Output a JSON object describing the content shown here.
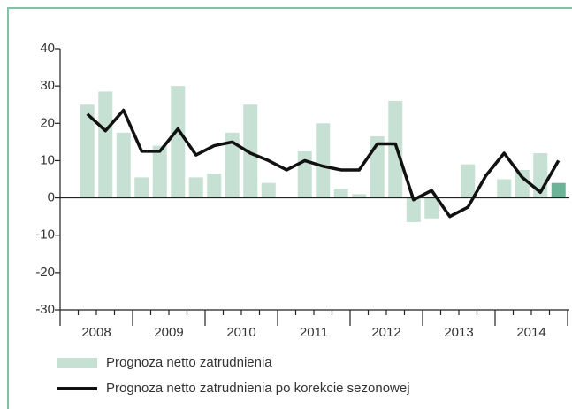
{
  "chart_data": {
    "type": "bar",
    "categories": [
      null,
      null,
      null,
      null,
      null,
      null,
      null,
      null,
      null,
      null,
      null,
      null,
      null,
      null,
      null,
      null,
      null,
      null,
      null,
      null,
      null,
      null,
      null,
      null,
      null,
      null,
      null
    ],
    "year_labels": [
      "2008",
      "2009",
      "2010",
      "2011",
      "2012",
      "2013",
      "2014"
    ],
    "series": [
      {
        "name": "Prognoza netto zatrudnienia",
        "kind": "bar",
        "color": "#c6e0d4",
        "colors": [
          "#c6e0d4",
          "#c6e0d4",
          "#c6e0d4",
          "#c6e0d4",
          "#c6e0d4",
          "#c6e0d4",
          "#c6e0d4",
          "#c6e0d4",
          "#c6e0d4",
          "#c6e0d4",
          "#c6e0d4",
          "#c6e0d4",
          "#c6e0d4",
          "#c6e0d4",
          "#c6e0d4",
          "#c6e0d4",
          "#c6e0d4",
          "#c6e0d4",
          "#c6e0d4",
          "#c6e0d4",
          "#c6e0d4",
          "#c6e0d4",
          "#c6e0d4",
          "#c6e0d4",
          "#c6e0d4",
          "#c6e0d4",
          "#6db397"
        ],
        "values": [
          25,
          28.5,
          17.5,
          5.5,
          14,
          30,
          5.5,
          6.5,
          17.5,
          25,
          4,
          0,
          12.5,
          20,
          2.5,
          1,
          16.5,
          26,
          -6.5,
          -5.5,
          0,
          9,
          0,
          5,
          7.5,
          12,
          4
        ]
      },
      {
        "name": "Prognoza netto zatrudnienia po korekcie sezonowej",
        "kind": "line",
        "color": "#111111",
        "values": [
          22.5,
          18,
          23.5,
          12.5,
          12.5,
          18.5,
          11.5,
          14,
          15,
          12,
          10,
          7.5,
          10,
          8.5,
          7.5,
          7.5,
          14.5,
          14.5,
          -0.5,
          2,
          -5,
          -2.5,
          6,
          12,
          5.5,
          1.5,
          10
        ]
      }
    ],
    "ylim": [
      -30,
      40
    ],
    "yticks": [
      -30,
      -20,
      -10,
      0,
      10,
      20,
      30,
      40
    ]
  }
}
